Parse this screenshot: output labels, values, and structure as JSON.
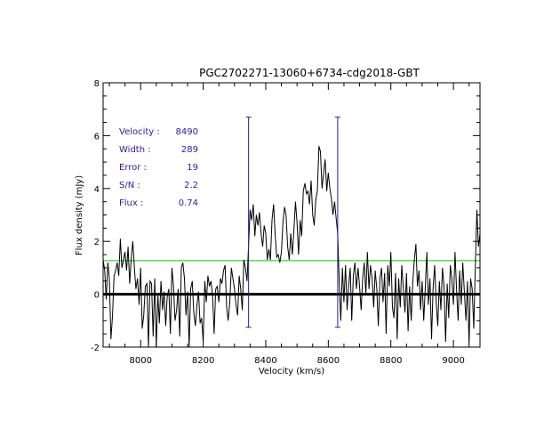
{
  "chart_data": {
    "type": "line",
    "title": "PGC2702271-13060+6734-cdg2018-GBT",
    "xlabel": "Velocity (km/s)",
    "ylabel": "Flux density (mJy)",
    "xlim": [
      7880,
      9085
    ],
    "ylim": [
      -2,
      8
    ],
    "xticks": [
      "8000",
      "8200",
      "8400",
      "8600",
      "8800",
      "9000"
    ],
    "yticks": [
      "-2",
      "0",
      "2",
      "4",
      "6",
      "8"
    ],
    "xtick_values": [
      8000,
      8200,
      8400,
      8600,
      8800,
      9000
    ],
    "ytick_values": [
      -2,
      0,
      2,
      4,
      6,
      8
    ],
    "zero_line": 0,
    "threshold_line": 1.27,
    "colors": {
      "spectrum": "#000000",
      "zero": "#000000",
      "threshold": "#00cc00",
      "markers": "#2a1aa8",
      "annotations": "#2a1aa8"
    },
    "markers": [
      {
        "x": 8345,
        "ymin": -1.25,
        "ymax": 6.7
      },
      {
        "x": 8630,
        "ymin": -1.25,
        "ymax": 6.7
      }
    ],
    "annotations": [
      {
        "label": "Velocity :",
        "value": "8490"
      },
      {
        "label": "Width :",
        "value": "289"
      },
      {
        "label": "Error :",
        "value": "19"
      },
      {
        "label": "S/N :",
        "value": "2.2"
      },
      {
        "label": "Flux :",
        "value": "0.74"
      }
    ],
    "series": [
      {
        "values": [
          [
            7880,
            1.3
          ],
          [
            7885,
            0.9
          ],
          [
            7890,
            -0.2
          ],
          [
            7895,
            1.2
          ],
          [
            7900,
            0.6
          ],
          [
            7905,
            -1.7
          ],
          [
            7910,
            -0.8
          ],
          [
            7915,
            0.7
          ],
          [
            7920,
            0.9
          ],
          [
            7925,
            1.2
          ],
          [
            7930,
            0.7
          ],
          [
            7935,
            2.1
          ],
          [
            7940,
            1.0
          ],
          [
            7945,
            1.3
          ],
          [
            7950,
            1.6
          ],
          [
            7955,
            0.9
          ],
          [
            7960,
            1.8
          ],
          [
            7965,
            0.4
          ],
          [
            7970,
            1.4
          ],
          [
            7975,
            2.0
          ],
          [
            7980,
            1.0
          ],
          [
            7985,
            0.2
          ],
          [
            7990,
            0.6
          ],
          [
            7995,
            -0.4
          ],
          [
            8000,
            1.0
          ],
          [
            8005,
            -1.3
          ],
          [
            8010,
            -0.8
          ],
          [
            8015,
            0.3
          ],
          [
            8020,
            0.4
          ],
          [
            8025,
            -2.0
          ],
          [
            8030,
            0.5
          ],
          [
            8035,
            0.4
          ],
          [
            8040,
            -1.6
          ],
          [
            8045,
            0.6
          ],
          [
            8050,
            -2.0
          ],
          [
            8055,
            0.0
          ],
          [
            8060,
            -1.1
          ],
          [
            8065,
            0.5
          ],
          [
            8070,
            -0.6
          ],
          [
            8075,
            0.1
          ],
          [
            8080,
            -1.2
          ],
          [
            8085,
            -0.1
          ],
          [
            8090,
            0.2
          ],
          [
            8095,
            -1.5
          ],
          [
            8100,
            1.0
          ],
          [
            8105,
            0.3
          ],
          [
            8110,
            -1.0
          ],
          [
            8115,
            -0.6
          ],
          [
            8120,
            0.2
          ],
          [
            8125,
            -1.6
          ],
          [
            8130,
            1.0
          ],
          [
            8135,
            1.2
          ],
          [
            8140,
            0.6
          ],
          [
            8145,
            -0.8
          ],
          [
            8150,
            0.1
          ],
          [
            8155,
            -2.0
          ],
          [
            8160,
            0.2
          ],
          [
            8165,
            0.5
          ],
          [
            8170,
            -0.7
          ],
          [
            8175,
            -1.2
          ],
          [
            8180,
            -0.4
          ],
          [
            8185,
            0.1
          ],
          [
            8190,
            -1.1
          ],
          [
            8195,
            -0.9
          ],
          [
            8200,
            -1.8
          ],
          [
            8205,
            0.5
          ],
          [
            8210,
            -0.3
          ],
          [
            8215,
            0.7
          ],
          [
            8220,
            0.3
          ],
          [
            8225,
            0.5
          ],
          [
            8230,
            -0.1
          ],
          [
            8235,
            -1.5
          ],
          [
            8240,
            0.2
          ],
          [
            8245,
            0.3
          ],
          [
            8250,
            -0.3
          ],
          [
            8255,
            0.6
          ],
          [
            8260,
            0.4
          ],
          [
            8265,
            0.9
          ],
          [
            8270,
            1.1
          ],
          [
            8275,
            -0.5
          ],
          [
            8280,
            -1.0
          ],
          [
            8285,
            -0.3
          ],
          [
            8290,
            1.0
          ],
          [
            8295,
            0.6
          ],
          [
            8300,
            0.2
          ],
          [
            8305,
            -0.4
          ],
          [
            8310,
            -0.8
          ],
          [
            8315,
            0.7
          ],
          [
            8320,
            0.2
          ],
          [
            8325,
            -0.6
          ],
          [
            8330,
            1.3
          ],
          [
            8335,
            1.0
          ],
          [
            8340,
            0.5
          ],
          [
            8345,
            1.8
          ],
          [
            8350,
            3.2
          ],
          [
            8355,
            2.8
          ],
          [
            8360,
            3.4
          ],
          [
            8365,
            2.2
          ],
          [
            8370,
            3.0
          ],
          [
            8375,
            2.6
          ],
          [
            8380,
            3.1
          ],
          [
            8385,
            2.3
          ],
          [
            8390,
            1.8
          ],
          [
            8395,
            2.6
          ],
          [
            8400,
            2.3
          ],
          [
            8405,
            1.3
          ],
          [
            8410,
            1.7
          ],
          [
            8415,
            1.3
          ],
          [
            8420,
            2.8
          ],
          [
            8425,
            3.4
          ],
          [
            8430,
            2.3
          ],
          [
            8435,
            1.4
          ],
          [
            8440,
            1.5
          ],
          [
            8445,
            1.2
          ],
          [
            8450,
            1.6
          ],
          [
            8455,
            2.7
          ],
          [
            8460,
            3.3
          ],
          [
            8465,
            3.0
          ],
          [
            8470,
            1.8
          ],
          [
            8475,
            1.3
          ],
          [
            8480,
            2.3
          ],
          [
            8485,
            1.5
          ],
          [
            8490,
            2.4
          ],
          [
            8495,
            3.5
          ],
          [
            8500,
            2.7
          ],
          [
            8505,
            1.5
          ],
          [
            8510,
            2.8
          ],
          [
            8515,
            2.2
          ],
          [
            8520,
            3.9
          ],
          [
            8525,
            4.2
          ],
          [
            8530,
            3.8
          ],
          [
            8535,
            3.9
          ],
          [
            8540,
            3.4
          ],
          [
            8545,
            4.3
          ],
          [
            8550,
            3.0
          ],
          [
            8555,
            2.6
          ],
          [
            8560,
            3.6
          ],
          [
            8565,
            3.9
          ],
          [
            8570,
            5.6
          ],
          [
            8575,
            5.4
          ],
          [
            8580,
            4.0
          ],
          [
            8585,
            4.6
          ],
          [
            8590,
            5.1
          ],
          [
            8595,
            3.9
          ],
          [
            8600,
            4.6
          ],
          [
            8605,
            4.0
          ],
          [
            8610,
            3.6
          ],
          [
            8615,
            3.0
          ],
          [
            8620,
            3.5
          ],
          [
            8625,
            2.9
          ],
          [
            8630,
            2.3
          ],
          [
            8635,
            0.4
          ],
          [
            8640,
            -1.0
          ],
          [
            8645,
            1.0
          ],
          [
            8650,
            -0.3
          ],
          [
            8655,
            1.1
          ],
          [
            8660,
            -0.6
          ],
          [
            8665,
            0.3
          ],
          [
            8670,
            1.0
          ],
          [
            8675,
            -1.0
          ],
          [
            8680,
            0.7
          ],
          [
            8685,
            1.2
          ],
          [
            8690,
            0.2
          ],
          [
            8695,
            1.0
          ],
          [
            8700,
            0.3
          ],
          [
            8705,
            -0.6
          ],
          [
            8710,
            0.6
          ],
          [
            8715,
            1.2
          ],
          [
            8720,
            0.0
          ],
          [
            8725,
            1.6
          ],
          [
            8730,
            0.2
          ],
          [
            8735,
            1.1
          ],
          [
            8740,
            0.6
          ],
          [
            8745,
            -0.5
          ],
          [
            8750,
            0.9
          ],
          [
            8755,
            0.2
          ],
          [
            8760,
            -1.2
          ],
          [
            8765,
            0.6
          ],
          [
            8770,
            1.0
          ],
          [
            8775,
            -0.3
          ],
          [
            8780,
            0.8
          ],
          [
            8785,
            -1.5
          ],
          [
            8790,
            1.1
          ],
          [
            8795,
            0.3
          ],
          [
            8800,
            1.6
          ],
          [
            8805,
            -0.5
          ],
          [
            8810,
            -0.9
          ],
          [
            8815,
            0.8
          ],
          [
            8820,
            -1.7
          ],
          [
            8825,
            0.6
          ],
          [
            8830,
            -0.5
          ],
          [
            8835,
            1.1
          ],
          [
            8840,
            0.2
          ],
          [
            8845,
            -0.7
          ],
          [
            8850,
            0.8
          ],
          [
            8855,
            -1.4
          ],
          [
            8860,
            0.3
          ],
          [
            8865,
            -1.0
          ],
          [
            8870,
            0.4
          ],
          [
            8875,
            1.3
          ],
          [
            8880,
            1.9
          ],
          [
            8885,
            0.3
          ],
          [
            8890,
            0.9
          ],
          [
            8895,
            -0.6
          ],
          [
            8900,
            0.5
          ],
          [
            8905,
            -1.0
          ],
          [
            8910,
            0.2
          ],
          [
            8915,
            1.6
          ],
          [
            8920,
            -0.4
          ],
          [
            8925,
            0.6
          ],
          [
            8930,
            -1.7
          ],
          [
            8935,
            0.2
          ],
          [
            8940,
            1.1
          ],
          [
            8945,
            -0.3
          ],
          [
            8950,
            -1.2
          ],
          [
            8955,
            0.5
          ],
          [
            8960,
            -0.6
          ],
          [
            8965,
            1.0
          ],
          [
            8970,
            0.3
          ],
          [
            8975,
            -1.8
          ],
          [
            8980,
            0.4
          ],
          [
            8985,
            -0.9
          ],
          [
            8990,
            1.1
          ],
          [
            8995,
            0.6
          ],
          [
            9000,
            -0.4
          ],
          [
            9005,
            1.6
          ],
          [
            9010,
            0.2
          ],
          [
            9015,
            -1.0
          ],
          [
            9020,
            0.9
          ],
          [
            9025,
            -0.4
          ],
          [
            9030,
            1.2
          ],
          [
            9035,
            0.1
          ],
          [
            9040,
            -1.0
          ],
          [
            9045,
            0.5
          ],
          [
            9050,
            -1.9
          ],
          [
            9055,
            0.6
          ],
          [
            9060,
            0.2
          ],
          [
            9065,
            -1.3
          ],
          [
            9070,
            1.0
          ],
          [
            9075,
            3.2
          ],
          [
            9080,
            1.8
          ],
          [
            9085,
            2.3
          ]
        ]
      }
    ]
  }
}
